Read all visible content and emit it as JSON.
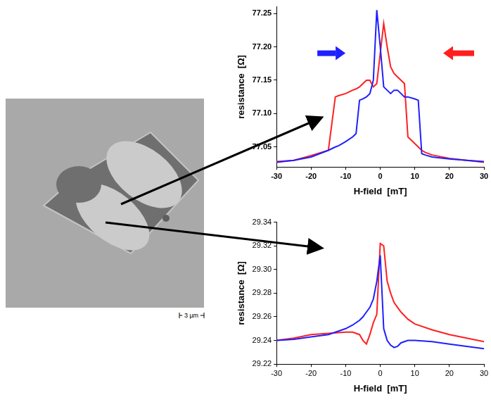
{
  "figure": {
    "scale_bar": "3 µm"
  },
  "chart_data": [
    {
      "type": "line",
      "xlabel": "H-field  [mT]",
      "ylabel": "resistance  [Ω]",
      "xlim": [
        -30,
        30
      ],
      "xticks": [
        -30,
        -20,
        -10,
        0,
        10,
        20,
        30
      ],
      "ylim": [
        77.02,
        77.26
      ],
      "yticks": [
        77.05,
        {
          "value": 77.1,
          "label": "77.10"
        },
        77.15,
        {
          "value": 77.2,
          "label": "77.20"
        },
        77.25
      ],
      "grid": false,
      "x": [
        -30,
        -25,
        -20,
        -15,
        -13,
        -12,
        -10,
        -8,
        -7,
        -6,
        -5,
        -4,
        -3,
        -2,
        -1,
        0,
        1,
        2,
        3,
        4,
        5,
        6,
        7,
        8,
        10,
        11,
        12,
        13,
        15,
        20,
        25,
        30
      ],
      "series": [
        {
          "color": "#1f1fff",
          "values": [
            77.027,
            77.03,
            77.035,
            77.045,
            77.05,
            77.052,
            77.058,
            77.065,
            77.07,
            77.12,
            77.122,
            77.125,
            77.13,
            77.15,
            77.255,
            77.2,
            77.14,
            77.135,
            77.13,
            77.135,
            77.135,
            77.13,
            77.125,
            77.125,
            77.122,
            77.12,
            77.04,
            77.038,
            77.035,
            77.032,
            77.03,
            77.028
          ]
        },
        {
          "color": "#ff1f1f",
          "values": [
            77.028,
            77.03,
            77.037,
            77.045,
            77.125,
            77.127,
            77.13,
            77.135,
            77.137,
            77.14,
            77.145,
            77.15,
            77.15,
            77.14,
            77.145,
            77.19,
            77.235,
            77.2,
            77.17,
            77.16,
            77.155,
            77.15,
            77.145,
            77.065,
            77.055,
            77.05,
            77.045,
            77.042,
            77.038,
            77.033,
            77.03,
            77.027
          ]
        }
      ]
    },
    {
      "type": "line",
      "xlabel": "H-field  [mT]",
      "ylabel": "resistance  [Ω]",
      "xlim": [
        -30,
        30
      ],
      "xticks": [
        -30,
        -20,
        -10,
        0,
        10,
        20,
        30
      ],
      "ylim": [
        29.22,
        29.34
      ],
      "yticks": [
        29.22,
        29.24,
        29.26,
        29.28,
        {
          "value": 29.3,
          "label": "29.30"
        },
        29.32,
        29.34
      ],
      "grid": false,
      "x": [
        -30,
        -25,
        -20,
        -15,
        -10,
        -8,
        -6,
        -5,
        -4,
        -3,
        -2,
        -1,
        0,
        1,
        2,
        3,
        4,
        5,
        6,
        8,
        10,
        15,
        20,
        25,
        30
      ],
      "series": [
        {
          "color": "#1f1fff",
          "values": [
            29.24,
            29.241,
            29.243,
            29.245,
            29.25,
            29.253,
            29.257,
            29.26,
            29.264,
            29.268,
            29.275,
            29.29,
            29.312,
            29.25,
            29.24,
            29.236,
            29.234,
            29.235,
            29.238,
            29.24,
            29.24,
            29.239,
            29.237,
            29.235,
            29.233
          ]
        },
        {
          "color": "#ff1f1f",
          "values": [
            29.24,
            29.242,
            29.245,
            29.246,
            29.247,
            29.247,
            29.245,
            29.24,
            29.237,
            29.245,
            29.255,
            29.262,
            29.322,
            29.32,
            29.29,
            29.28,
            29.272,
            29.268,
            29.264,
            29.258,
            29.254,
            29.249,
            29.245,
            29.242,
            29.239
          ]
        }
      ]
    }
  ]
}
